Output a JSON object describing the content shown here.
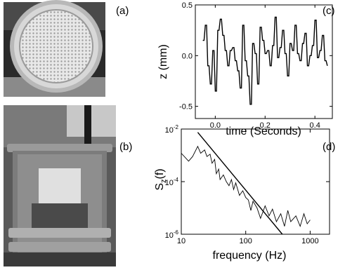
{
  "panels": {
    "a": "(a)",
    "b": "(b)",
    "c": "(c)",
    "d": "(d)"
  },
  "chart_data": [
    {
      "panel": "(c)",
      "type": "line",
      "xlabel": "time (Seconds)",
      "ylabel": "z (mm)",
      "xlim": [
        -0.08,
        0.47
      ],
      "ylim": [
        -0.62,
        0.5
      ],
      "xticks": [
        0.0,
        0.2,
        0.4
      ],
      "xticklabels": [
        "0.0",
        "0.2",
        "0.4"
      ],
      "yticks": [
        -0.5,
        0.0,
        0.5
      ],
      "yticklabels": [
        "-0.5",
        "0.0",
        "0.5"
      ],
      "x": [
        -0.05,
        -0.04,
        -0.03,
        -0.02,
        -0.01,
        0.0,
        0.01,
        0.02,
        0.03,
        0.04,
        0.05,
        0.06,
        0.07,
        0.08,
        0.09,
        0.1,
        0.11,
        0.12,
        0.13,
        0.14,
        0.15,
        0.16,
        0.17,
        0.18,
        0.19,
        0.2,
        0.21,
        0.22,
        0.23,
        0.24,
        0.25,
        0.26,
        0.27,
        0.28,
        0.29,
        0.3,
        0.31,
        0.32,
        0.33,
        0.34,
        0.35,
        0.36,
        0.37,
        0.38,
        0.39,
        0.4,
        0.41,
        0.42,
        0.43,
        0.44,
        0.45
      ],
      "y": [
        0.15,
        0.3,
        -0.1,
        -0.28,
        0.05,
        -0.35,
        0.25,
        0.36,
        0.2,
        0.05,
        -0.1,
        0.05,
        0.08,
        -0.05,
        -0.15,
        -0.32,
        0.3,
        -0.05,
        -0.2,
        -0.48,
        0.12,
        0.02,
        -0.28,
        0.28,
        0.15,
        0.02,
        0.05,
        -0.1,
        0.1,
        0.38,
        -0.02,
        0.08,
        0.25,
        0.02,
        -0.2,
        0.12,
        0.05,
        0.3,
        0.02,
        -0.05,
        0.12,
        0.22,
        -0.1,
        0.0,
        0.1,
        0.35,
        -0.02,
        0.05,
        0.2,
        -0.05,
        -0.1
      ]
    },
    {
      "panel": "(d)",
      "type": "line",
      "xscale": "log",
      "yscale": "log",
      "xlabel": "frequency (Hz)",
      "ylabel": "S_z(f)",
      "ylabel_main": "S",
      "ylabel_sub": "z",
      "ylabel_tail": "(f)",
      "xlim": [
        10,
        2000
      ],
      "ylim": [
        1e-06,
        0.01
      ],
      "xticks": [
        10,
        100,
        1000
      ],
      "xticklabels": [
        "10",
        "100",
        "1000"
      ],
      "yticks": [
        1e-06,
        0.0001,
        0.01
      ],
      "ytick_base": "10",
      "ytick_exponents": [
        "-6",
        "-4",
        "-2"
      ],
      "series": [
        {
          "type": "spectrum",
          "x": [
            10,
            13,
            15,
            18,
            20,
            23,
            25,
            28,
            30,
            33,
            35,
            38,
            40,
            45,
            50,
            55,
            60,
            65,
            70,
            80,
            90,
            100,
            110,
            120,
            130,
            150,
            170,
            200,
            230,
            260,
            300,
            350,
            400,
            450,
            500,
            600,
            700,
            800,
            900,
            1000
          ],
          "y": [
            0.0012,
            0.0006,
            0.0009,
            0.0022,
            0.0012,
            0.0016,
            0.0009,
            0.0011,
            0.0005,
            0.0007,
            0.0002,
            0.0003,
            0.00012,
            0.00018,
            0.0001,
            7e-05,
            0.00012,
            5e-05,
            9e-05,
            3e-05,
            4.5e-05,
            2.5e-05,
            2e-05,
            8e-06,
            1.8e-05,
            1e-05,
            4e-06,
            1.2e-05,
            5e-06,
            9e-06,
            3e-06,
            6e-06,
            2e-06,
            8e-06,
            3e-06,
            5e-06,
            2e-06,
            6e-06,
            2.5e-06,
            3.5e-06
          ]
        },
        {
          "type": "power-law fit",
          "x": [
            18,
            370
          ],
          "y": [
            0.0075,
            1e-06
          ]
        }
      ]
    }
  ]
}
